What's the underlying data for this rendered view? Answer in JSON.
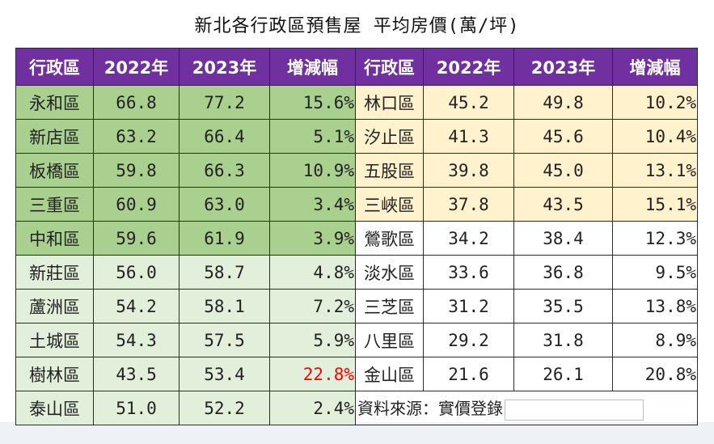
{
  "title": "新北各行政區預售屋 平均房價(萬/坪)",
  "headers": [
    "行政區",
    "2022年",
    "2023年",
    "增減幅",
    "行政區",
    "2022年",
    "2023年",
    "增減幅"
  ],
  "rows": [
    {
      "l_name": "永和區",
      "l_2022": "66.8",
      "l_2023": "77.2",
      "l_pct": "15.6%",
      "r_name": "林口區",
      "r_2022": "45.2",
      "r_2023": "49.8",
      "r_pct": "10.2%"
    },
    {
      "l_name": "新店區",
      "l_2022": "63.2",
      "l_2023": "66.4",
      "l_pct": "5.1%",
      "r_name": "汐止區",
      "r_2022": "41.3",
      "r_2023": "45.6",
      "r_pct": "10.4%"
    },
    {
      "l_name": "板橋區",
      "l_2022": "59.8",
      "l_2023": "66.3",
      "l_pct": "10.9%",
      "r_name": "五股區",
      "r_2022": "39.8",
      "r_2023": "45.0",
      "r_pct": "13.1%"
    },
    {
      "l_name": "三重區",
      "l_2022": "60.9",
      "l_2023": "63.0",
      "l_pct": "3.4%",
      "r_name": "三峽區",
      "r_2022": "37.8",
      "r_2023": "43.5",
      "r_pct": "15.1%"
    },
    {
      "l_name": "中和區",
      "l_2022": "59.6",
      "l_2023": "61.9",
      "l_pct": "3.9%",
      "r_name": "鶯歌區",
      "r_2022": "34.2",
      "r_2023": "38.4",
      "r_pct": "12.3%"
    },
    {
      "l_name": "新莊區",
      "l_2022": "56.0",
      "l_2023": "58.7",
      "l_pct": "4.8%",
      "r_name": "淡水區",
      "r_2022": "33.6",
      "r_2023": "36.8",
      "r_pct": "9.5%"
    },
    {
      "l_name": "蘆洲區",
      "l_2022": "54.2",
      "l_2023": "58.1",
      "l_pct": "7.2%",
      "r_name": "三芝區",
      "r_2022": "31.2",
      "r_2023": "35.5",
      "r_pct": "13.8%"
    },
    {
      "l_name": "土城區",
      "l_2022": "54.3",
      "l_2023": "57.5",
      "l_pct": "5.9%",
      "r_name": "八里區",
      "r_2022": "29.2",
      "r_2023": "31.8",
      "r_pct": "8.9%"
    },
    {
      "l_name": "樹林區",
      "l_2022": "43.5",
      "l_2023": "53.4",
      "l_pct": "22.8%",
      "r_name": "金山區",
      "r_2022": "21.6",
      "r_2023": "26.1",
      "r_pct": "20.8%"
    },
    {
      "l_name": "泰山區",
      "l_2022": "51.0",
      "l_2023": "52.2",
      "l_pct": "2.4%"
    }
  ],
  "source": "資料來源：實價登錄",
  "colors": {
    "header": "#7030a0",
    "green_dark": "#a9d08e",
    "green_light": "#e2efda",
    "yellow": "#fff2cc",
    "highlight": "#ff0000"
  }
}
